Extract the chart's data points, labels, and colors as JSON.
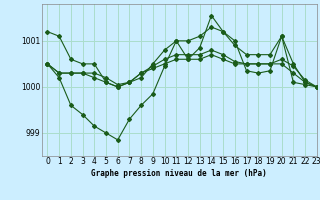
{
  "title": "Graphe pression niveau de la mer (hPa)",
  "background_color": "#cceeff",
  "grid_color": "#aaddcc",
  "line_color": "#1a5c1a",
  "xlim": [
    -0.5,
    23
  ],
  "ylim": [
    998.5,
    1001.8
  ],
  "yticks": [
    999,
    1000,
    1001
  ],
  "xticks": [
    0,
    1,
    2,
    3,
    4,
    5,
    6,
    7,
    8,
    9,
    10,
    11,
    12,
    13,
    14,
    15,
    16,
    17,
    18,
    19,
    20,
    21,
    22,
    23
  ],
  "series": [
    [
      1001.2,
      1001.1,
      1000.6,
      1000.5,
      1000.5,
      1000.1,
      1000.0,
      1000.1,
      1000.2,
      1000.5,
      1000.8,
      1001.0,
      1001.0,
      1001.1,
      1001.3,
      1001.2,
      1000.9,
      1000.7,
      1000.7,
      1000.7,
      1001.1,
      1000.5,
      1000.1,
      1000.0
    ],
    [
      1000.5,
      1000.3,
      1000.3,
      1000.3,
      1000.2,
      1000.1,
      1000.0,
      1000.1,
      1000.3,
      1000.4,
      1000.5,
      1000.6,
      1000.6,
      1000.6,
      1000.7,
      1000.6,
      1000.5,
      1000.5,
      1000.5,
      1000.5,
      1000.5,
      1000.3,
      1000.1,
      1000.0
    ],
    [
      1000.5,
      1000.3,
      1000.3,
      1000.3,
      1000.3,
      1000.2,
      1000.05,
      1000.1,
      1000.3,
      1000.45,
      1000.6,
      1000.7,
      1000.7,
      1000.7,
      1000.8,
      1000.7,
      1000.55,
      1000.5,
      1000.5,
      1000.5,
      1000.6,
      1000.45,
      1000.15,
      1000.0
    ],
    [
      1000.5,
      1000.2,
      999.6,
      999.4,
      999.15,
      999.0,
      998.85,
      999.3,
      999.6,
      999.85,
      1000.45,
      1001.0,
      1000.6,
      1000.85,
      1001.55,
      1001.2,
      1001.0,
      1000.35,
      1000.3,
      1000.35,
      1001.1,
      1000.1,
      1000.05,
      1000.0
    ]
  ],
  "xlabel_fontsize": 5.5,
  "tick_fontsize": 5.5,
  "linewidth": 0.8,
  "markersize": 2.0
}
